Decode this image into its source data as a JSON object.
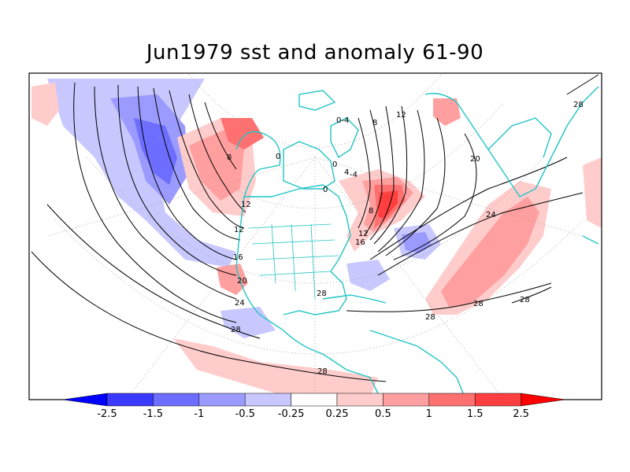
{
  "title": "Jun1979 sst and anomaly 61-90",
  "colors": {
    "coast": "#22c4c4",
    "contour": "#000000",
    "grid": "#999999",
    "frame": "#000000"
  },
  "colorbar": {
    "levels": [
      "-2.5",
      "-1.5",
      "-1",
      "-0.5",
      "-0.25",
      "0.25",
      "0.5",
      "1",
      "1.5",
      "2.5"
    ],
    "colors": [
      "#0000ff",
      "#3a3aff",
      "#6d6dff",
      "#9b9bff",
      "#c8c8ff",
      "#ffffff",
      "#ffcccc",
      "#ff9f9f",
      "#ff7070",
      "#ff3f3f",
      "#ff0000"
    ]
  },
  "contour_labels": [
    "8",
    "12",
    "12",
    "16",
    "20",
    "24",
    "28",
    "28",
    "0",
    "0",
    "-4",
    "0-4",
    "8",
    "12",
    "4",
    "0",
    "8",
    "12",
    "16",
    "20",
    "24",
    "28",
    "28",
    "28",
    "28",
    "28"
  ]
}
